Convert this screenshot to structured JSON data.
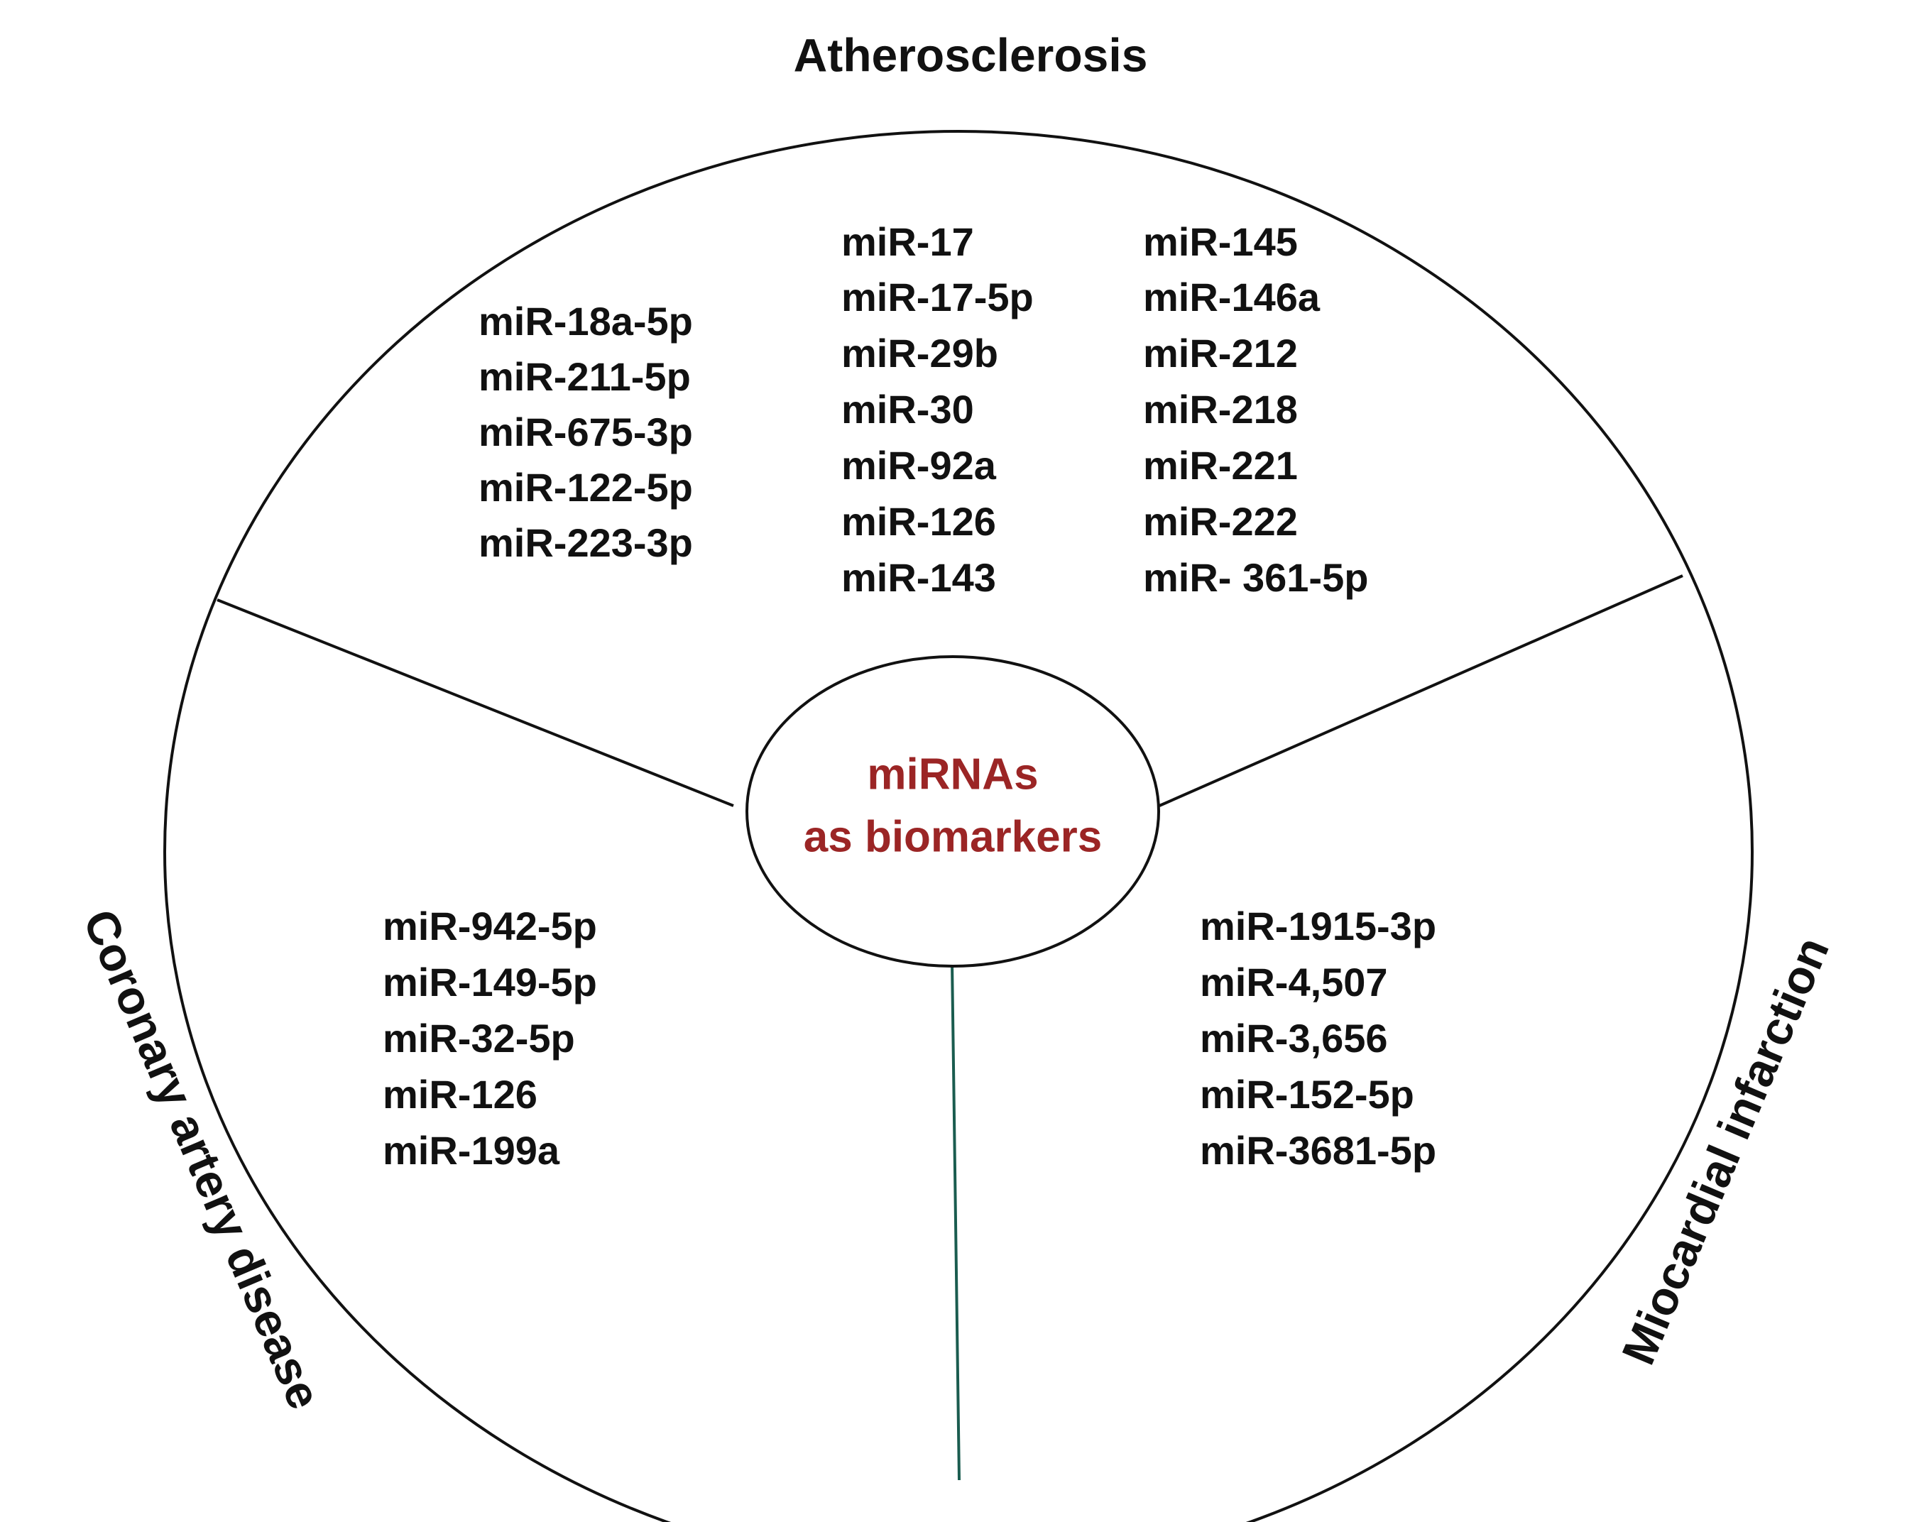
{
  "diagram": {
    "center": {
      "line1": "miRNAs",
      "line2": "as biomarkers"
    },
    "sections": {
      "atherosclerosis": {
        "title": "Atherosclerosis",
        "columns": [
          [
            "miR-18a-5p",
            "miR-211-5p",
            "miR-675-3p",
            "miR-122-5p",
            "miR-223-3p"
          ],
          [
            "miR-17",
            "miR-17-5p",
            "miR-29b",
            "miR-30",
            "miR-92a",
            "miR-126",
            "miR-143"
          ],
          [
            "miR-145",
            "miR-146a",
            "miR-212",
            "miR-218",
            "miR-221",
            "miR-222",
            "miR- 361-5p"
          ]
        ]
      },
      "coronary": {
        "title": "Coronary artery disease",
        "items": [
          "miR-942-5p",
          "miR-149-5p",
          "miR-32-5p",
          "miR-126",
          "miR-199a"
        ]
      },
      "myocardial": {
        "title": "Miocardial infarction",
        "items": [
          "miR-1915-3p",
          "miR-4,507",
          "miR-3,656",
          "miR-152-5p",
          "miR-3681-5p"
        ]
      }
    },
    "colors": {
      "outline": "#111111",
      "center_text": "#9b2525",
      "bottom_divider": "#1a5c4f",
      "text": "#111111"
    }
  }
}
